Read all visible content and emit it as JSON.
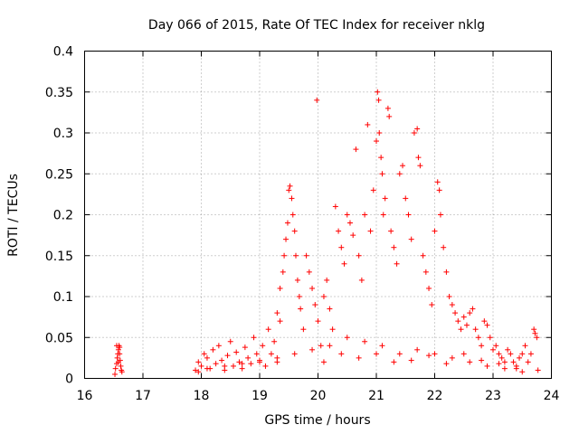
{
  "chart_data": {
    "type": "scatter",
    "title": "Day 066 of 2015, Rate Of TEC Index for receiver nklg",
    "xlabel": "GPS time / hours",
    "ylabel": "ROTI / TECUs",
    "xlim": [
      16,
      24
    ],
    "ylim": [
      0,
      0.4
    ],
    "xticks": [
      16,
      17,
      18,
      19,
      20,
      21,
      22,
      23,
      24
    ],
    "xtick_labels": [
      "16",
      "17",
      "18",
      "19",
      "20",
      "21",
      "22",
      "23",
      "24"
    ],
    "yticks": [
      0,
      0.05,
      0.1,
      0.15,
      0.2,
      0.25,
      0.3,
      0.35,
      0.4
    ],
    "ytick_labels": [
      "0",
      "0.05",
      "0.1",
      "0.15",
      "0.2",
      "0.25",
      "0.3",
      "0.35",
      "0.4"
    ],
    "grid": true,
    "marker": "+",
    "color": "#ff0000",
    "series": [
      {
        "name": "ROTI",
        "points": [
          [
            16.52,
            0.005
          ],
          [
            16.53,
            0.012
          ],
          [
            16.55,
            0.018
          ],
          [
            16.56,
            0.025
          ],
          [
            16.57,
            0.03
          ],
          [
            16.58,
            0.035
          ],
          [
            16.59,
            0.04
          ],
          [
            16.6,
            0.038
          ],
          [
            16.61,
            0.022
          ],
          [
            16.62,
            0.015
          ],
          [
            16.63,
            0.01
          ],
          [
            16.64,
            0.008
          ],
          [
            16.55,
            0.04
          ],
          [
            16.6,
            0.03
          ],
          [
            16.58,
            0.02
          ],
          [
            17.9,
            0.01
          ],
          [
            17.95,
            0.02
          ],
          [
            18.0,
            0.015
          ],
          [
            18.05,
            0.03
          ],
          [
            18.1,
            0.025
          ],
          [
            18.15,
            0.012
          ],
          [
            18.2,
            0.035
          ],
          [
            18.25,
            0.018
          ],
          [
            18.3,
            0.04
          ],
          [
            18.35,
            0.022
          ],
          [
            18.4,
            0.01
          ],
          [
            18.45,
            0.028
          ],
          [
            18.5,
            0.045
          ],
          [
            18.55,
            0.015
          ],
          [
            18.6,
            0.032
          ],
          [
            18.65,
            0.02
          ],
          [
            18.7,
            0.012
          ],
          [
            18.75,
            0.038
          ],
          [
            18.8,
            0.025
          ],
          [
            18.85,
            0.018
          ],
          [
            18.9,
            0.05
          ],
          [
            18.95,
            0.03
          ],
          [
            19.0,
            0.022
          ],
          [
            19.05,
            0.04
          ],
          [
            19.1,
            0.015
          ],
          [
            19.15,
            0.06
          ],
          [
            19.2,
            0.03
          ],
          [
            19.25,
            0.045
          ],
          [
            19.3,
            0.02
          ],
          [
            19.35,
            0.07
          ],
          [
            19.3,
            0.08
          ],
          [
            19.35,
            0.11
          ],
          [
            19.4,
            0.13
          ],
          [
            19.42,
            0.15
          ],
          [
            19.45,
            0.17
          ],
          [
            19.48,
            0.19
          ],
          [
            19.5,
            0.23
          ],
          [
            19.52,
            0.235
          ],
          [
            19.55,
            0.22
          ],
          [
            19.57,
            0.2
          ],
          [
            19.6,
            0.18
          ],
          [
            19.62,
            0.15
          ],
          [
            19.65,
            0.12
          ],
          [
            19.68,
            0.1
          ],
          [
            19.7,
            0.085
          ],
          [
            19.75,
            0.06
          ],
          [
            19.8,
            0.15
          ],
          [
            19.85,
            0.13
          ],
          [
            19.9,
            0.11
          ],
          [
            19.95,
            0.09
          ],
          [
            19.98,
            0.34
          ],
          [
            20.0,
            0.07
          ],
          [
            20.05,
            0.04
          ],
          [
            20.1,
            0.1
          ],
          [
            20.15,
            0.12
          ],
          [
            20.2,
            0.085
          ],
          [
            20.25,
            0.06
          ],
          [
            20.3,
            0.21
          ],
          [
            20.35,
            0.18
          ],
          [
            20.4,
            0.16
          ],
          [
            20.45,
            0.14
          ],
          [
            20.5,
            0.2
          ],
          [
            20.55,
            0.19
          ],
          [
            20.6,
            0.175
          ],
          [
            20.65,
            0.28
          ],
          [
            20.7,
            0.15
          ],
          [
            20.75,
            0.12
          ],
          [
            20.8,
            0.2
          ],
          [
            20.85,
            0.31
          ],
          [
            20.9,
            0.18
          ],
          [
            20.95,
            0.23
          ],
          [
            21.0,
            0.29
          ],
          [
            21.02,
            0.35
          ],
          [
            21.04,
            0.34
          ],
          [
            21.05,
            0.3
          ],
          [
            21.08,
            0.27
          ],
          [
            21.1,
            0.25
          ],
          [
            21.12,
            0.2
          ],
          [
            21.15,
            0.22
          ],
          [
            21.2,
            0.33
          ],
          [
            21.22,
            0.32
          ],
          [
            21.25,
            0.18
          ],
          [
            21.3,
            0.16
          ],
          [
            21.35,
            0.14
          ],
          [
            21.4,
            0.25
          ],
          [
            21.45,
            0.26
          ],
          [
            21.5,
            0.22
          ],
          [
            21.55,
            0.2
          ],
          [
            21.6,
            0.17
          ],
          [
            21.65,
            0.3
          ],
          [
            21.7,
            0.305
          ],
          [
            21.72,
            0.27
          ],
          [
            21.75,
            0.26
          ],
          [
            21.8,
            0.15
          ],
          [
            21.85,
            0.13
          ],
          [
            21.9,
            0.11
          ],
          [
            21.95,
            0.09
          ],
          [
            22.0,
            0.18
          ],
          [
            22.05,
            0.24
          ],
          [
            22.08,
            0.23
          ],
          [
            22.1,
            0.2
          ],
          [
            22.15,
            0.16
          ],
          [
            22.2,
            0.13
          ],
          [
            22.25,
            0.1
          ],
          [
            22.3,
            0.09
          ],
          [
            22.35,
            0.08
          ],
          [
            22.4,
            0.07
          ],
          [
            22.45,
            0.06
          ],
          [
            22.5,
            0.075
          ],
          [
            22.55,
            0.065
          ],
          [
            22.6,
            0.08
          ],
          [
            22.65,
            0.085
          ],
          [
            22.7,
            0.06
          ],
          [
            22.75,
            0.05
          ],
          [
            22.8,
            0.04
          ],
          [
            22.85,
            0.07
          ],
          [
            22.9,
            0.065
          ],
          [
            22.95,
            0.05
          ],
          [
            23.0,
            0.035
          ],
          [
            23.05,
            0.04
          ],
          [
            23.1,
            0.03
          ],
          [
            23.15,
            0.025
          ],
          [
            23.2,
            0.02
          ],
          [
            23.25,
            0.035
          ],
          [
            23.3,
            0.03
          ],
          [
            23.35,
            0.02
          ],
          [
            23.4,
            0.015
          ],
          [
            23.45,
            0.025
          ],
          [
            23.5,
            0.03
          ],
          [
            23.55,
            0.04
          ],
          [
            23.6,
            0.02
          ],
          [
            23.65,
            0.03
          ],
          [
            23.7,
            0.06
          ],
          [
            23.72,
            0.055
          ],
          [
            23.75,
            0.05
          ],
          [
            23.77,
            0.01
          ],
          [
            23.5,
            0.008
          ],
          [
            23.2,
            0.012
          ],
          [
            22.9,
            0.015
          ],
          [
            22.6,
            0.02
          ],
          [
            22.3,
            0.025
          ],
          [
            22.0,
            0.03
          ],
          [
            21.7,
            0.035
          ],
          [
            21.4,
            0.03
          ],
          [
            21.1,
            0.04
          ],
          [
            20.8,
            0.045
          ],
          [
            20.5,
            0.05
          ],
          [
            20.2,
            0.04
          ],
          [
            19.9,
            0.035
          ],
          [
            19.6,
            0.03
          ],
          [
            19.3,
            0.025
          ],
          [
            19.0,
            0.02
          ],
          [
            18.7,
            0.018
          ],
          [
            18.4,
            0.015
          ],
          [
            18.1,
            0.012
          ],
          [
            17.95,
            0.008
          ],
          [
            20.1,
            0.02
          ],
          [
            20.4,
            0.03
          ],
          [
            20.7,
            0.025
          ],
          [
            21.0,
            0.03
          ],
          [
            21.3,
            0.02
          ],
          [
            21.6,
            0.022
          ],
          [
            21.9,
            0.028
          ],
          [
            22.2,
            0.018
          ],
          [
            22.5,
            0.03
          ],
          [
            22.8,
            0.022
          ],
          [
            23.1,
            0.018
          ],
          [
            23.4,
            0.012
          ]
        ]
      }
    ]
  }
}
